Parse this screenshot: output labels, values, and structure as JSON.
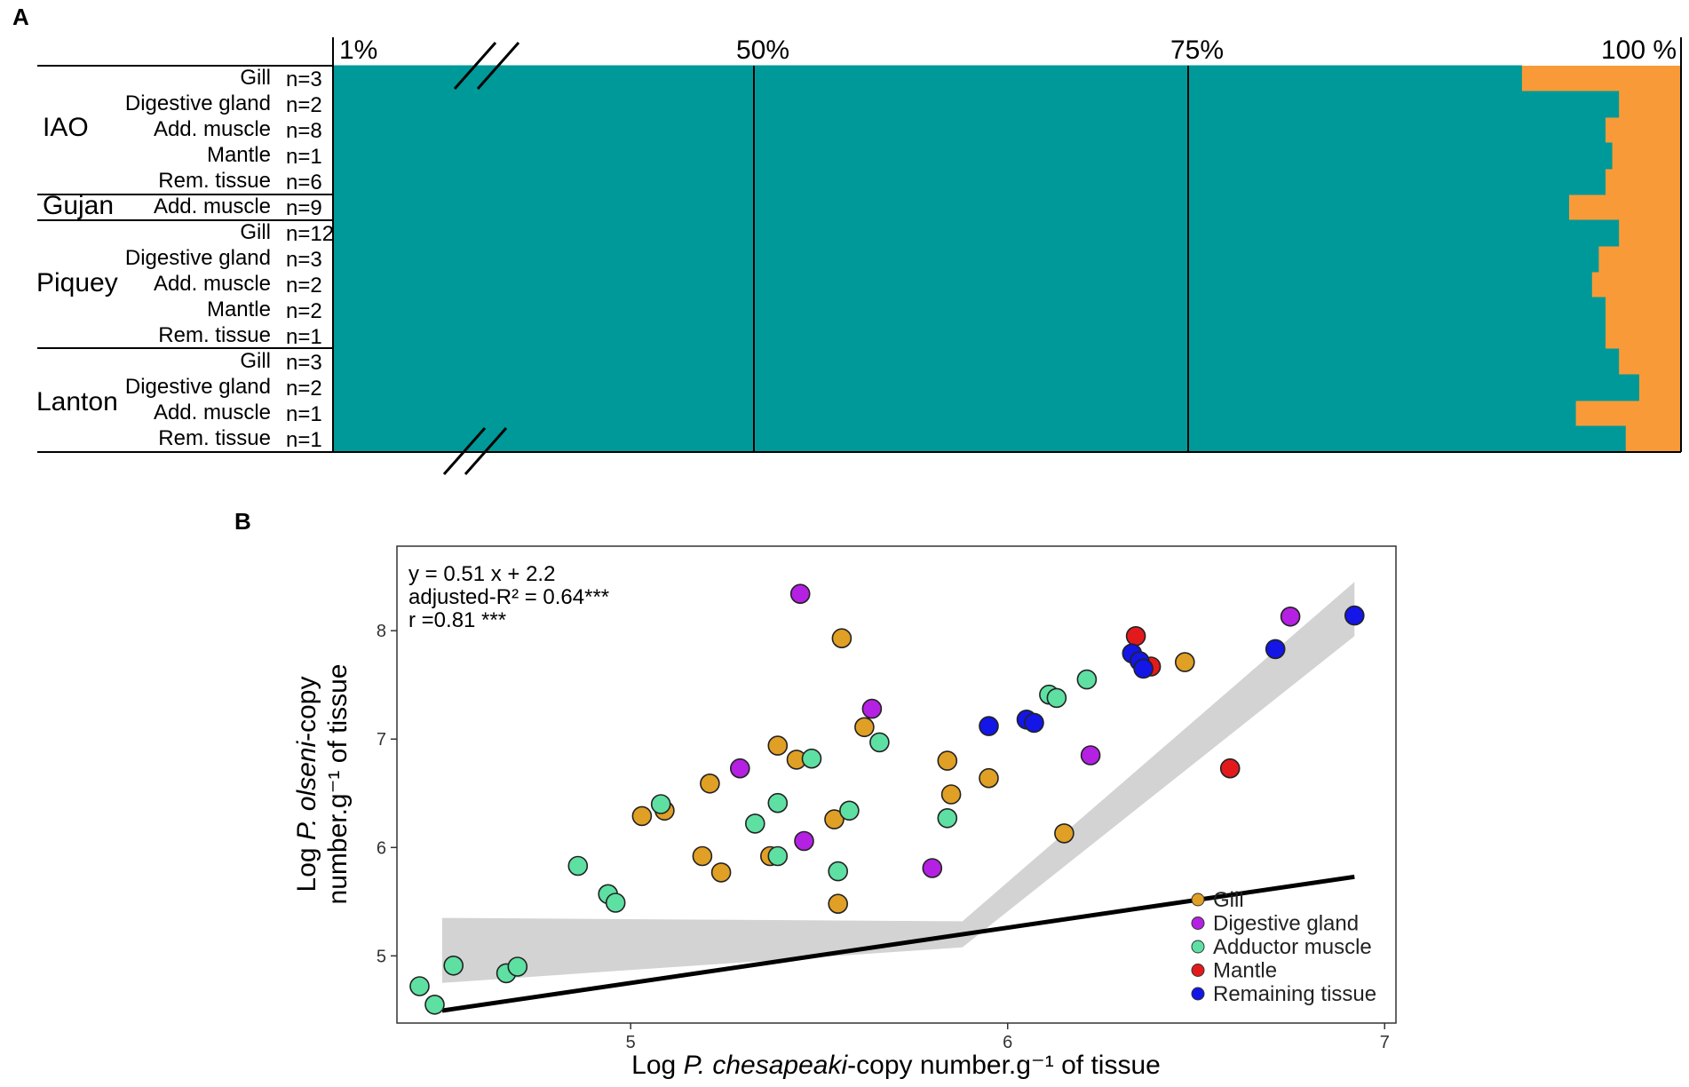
{
  "panel_a": {
    "letter": "A",
    "percent_labels": [
      "1%",
      "50%",
      "75%",
      "100 %"
    ],
    "rows": [
      {
        "group": "IAO",
        "tissue": "Gill",
        "n": "n=3",
        "teal": 88.2
      },
      {
        "group": "IAO",
        "tissue": "Digestive gland",
        "n": "n=2",
        "teal": 95.4
      },
      {
        "group": "IAO",
        "tissue": "Add. muscle",
        "n": "n=8",
        "teal": 94.4
      },
      {
        "group": "IAO",
        "tissue": "Mantle",
        "n": "n=1",
        "teal": 94.9
      },
      {
        "group": "IAO",
        "tissue": "Rem. tissue",
        "n": "n=6",
        "teal": 94.4
      },
      {
        "group": "Gujan",
        "tissue": "Add. muscle",
        "n": "n=9",
        "teal": 91.7
      },
      {
        "group": "Piquey",
        "tissue": "Gill",
        "n": "n=12",
        "teal": 95.4
      },
      {
        "group": "Piquey",
        "tissue": "Digestive gland",
        "n": "n=3",
        "teal": 93.9
      },
      {
        "group": "Piquey",
        "tissue": "Add. muscle",
        "n": "n=2",
        "teal": 93.4
      },
      {
        "group": "Piquey",
        "tissue": "Mantle",
        "n": "n=2",
        "teal": 94.4
      },
      {
        "group": "Piquey",
        "tissue": "Rem. tissue",
        "n": "n=1",
        "teal": 94.4
      },
      {
        "group": "Lanton",
        "tissue": "Gill",
        "n": "n=3",
        "teal": 95.4
      },
      {
        "group": "Lanton",
        "tissue": "Digestive gland",
        "n": "n=2",
        "teal": 96.9
      },
      {
        "group": "Lanton",
        "tissue": "Add. muscle",
        "n": "n=1",
        "teal": 92.2
      },
      {
        "group": "Lanton",
        "tissue": "Rem. tissue",
        "n": "n=1",
        "teal": 95.9
      }
    ],
    "groups": [
      "IAO",
      "Gujan",
      "Piquey",
      "Lanton"
    ],
    "colors": {
      "teal": "#009999",
      "orange": "#F99A38"
    }
  },
  "panel_b": {
    "letter": "B",
    "stats": [
      "y = 0.51 x + 2.2",
      "adjusted-R² = 0.64***",
      "r =0.81 ***"
    ],
    "xlabel": {
      "pre": "Log ",
      "italic": "P. chesapeaki",
      "post": "-copy number.g⁻¹ of tissue"
    },
    "ylabel_line1": {
      "pre": "Log ",
      "italic": "P. olseni",
      "post": "-copy"
    },
    "ylabel_line2": "number.g⁻¹ of tissue",
    "legend": [
      {
        "key": "gill",
        "label": "Gill"
      },
      {
        "key": "dg",
        "label": "Digestive gland"
      },
      {
        "key": "am",
        "label": "Adductor muscle"
      },
      {
        "key": "mantle",
        "label": "Mantle"
      },
      {
        "key": "rem",
        "label": "Remaining tissue"
      }
    ]
  },
  "chart_data": {
    "type": "scatter",
    "title": "",
    "xlabel": "Log P. chesapeaki-copy number.g-1 of tissue",
    "ylabel": "Log P. olseni-copy number.g-1 of tissue",
    "xlim": [
      4.38,
      7.03
    ],
    "ylim": [
      4.38,
      8.78
    ],
    "xticks": [
      5,
      6,
      7
    ],
    "yticks": [
      5,
      6,
      7,
      8
    ],
    "regression": {
      "slope": 0.51,
      "intercept": 2.2,
      "x_range": [
        4.5,
        6.92
      ],
      "ci_start": [
        4.75,
        5.35
      ],
      "ci_end": [
        7.95,
        8.45
      ]
    },
    "colors": {
      "gill": "#E09F25",
      "dg": "#B421E3",
      "am": "#5EE0A3",
      "mantle": "#E31A1C",
      "rem": "#1316E6"
    },
    "series": [
      {
        "name": "Gill",
        "key": "gill",
        "points": [
          [
            5.03,
            6.29
          ],
          [
            5.09,
            6.34
          ],
          [
            5.21,
            6.59
          ],
          [
            5.19,
            5.92
          ],
          [
            5.24,
            5.77
          ],
          [
            5.37,
            5.92
          ],
          [
            5.39,
            6.94
          ],
          [
            5.44,
            6.81
          ],
          [
            5.54,
            6.26
          ],
          [
            5.56,
            7.93
          ],
          [
            5.55,
            5.48
          ],
          [
            5.62,
            7.11
          ],
          [
            5.84,
            6.8
          ],
          [
            5.85,
            6.49
          ],
          [
            5.95,
            6.64
          ],
          [
            6.15,
            6.13
          ],
          [
            6.47,
            7.71
          ]
        ]
      },
      {
        "name": "Digestive gland",
        "key": "dg",
        "points": [
          [
            5.45,
            8.34
          ],
          [
            5.29,
            6.73
          ],
          [
            5.46,
            6.06
          ],
          [
            5.64,
            7.28
          ],
          [
            5.8,
            5.81
          ],
          [
            6.22,
            6.85
          ],
          [
            6.75,
            8.13
          ]
        ]
      },
      {
        "name": "Adductor muscle",
        "key": "am",
        "points": [
          [
            4.44,
            4.72
          ],
          [
            4.48,
            4.55
          ],
          [
            4.53,
            4.91
          ],
          [
            4.67,
            4.84
          ],
          [
            4.7,
            4.9
          ],
          [
            4.86,
            5.83
          ],
          [
            4.94,
            5.57
          ],
          [
            4.96,
            5.49
          ],
          [
            5.08,
            6.4
          ],
          [
            5.33,
            6.22
          ],
          [
            5.39,
            6.41
          ],
          [
            5.39,
            5.92
          ],
          [
            5.48,
            6.82
          ],
          [
            5.55,
            5.78
          ],
          [
            5.58,
            6.34
          ],
          [
            5.66,
            6.97
          ],
          [
            5.84,
            6.27
          ],
          [
            6.11,
            7.41
          ],
          [
            6.13,
            7.38
          ],
          [
            6.21,
            7.55
          ]
        ]
      },
      {
        "name": "Mantle",
        "key": "mantle",
        "points": [
          [
            6.34,
            7.95
          ],
          [
            6.38,
            7.67
          ],
          [
            6.59,
            6.73
          ]
        ]
      },
      {
        "name": "Remaining tissue",
        "key": "rem",
        "points": [
          [
            5.95,
            7.12
          ],
          [
            6.05,
            7.18
          ],
          [
            6.07,
            7.15
          ],
          [
            6.33,
            7.79
          ],
          [
            6.35,
            7.72
          ],
          [
            6.36,
            7.65
          ],
          [
            6.71,
            7.83
          ],
          [
            6.92,
            8.14
          ]
        ]
      }
    ]
  }
}
